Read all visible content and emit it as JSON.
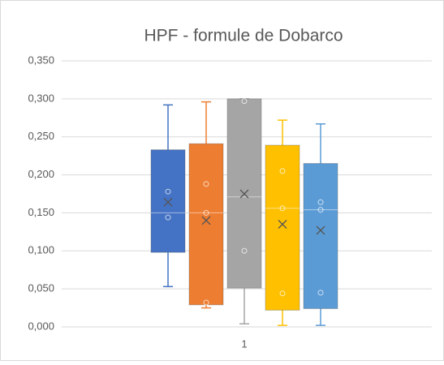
{
  "chart_data": {
    "type": "box",
    "title": "HPF - formule de Dobarco",
    "categories": [
      "1"
    ],
    "ylim": [
      0,
      0.35
    ],
    "yticks": [
      {
        "value": 0,
        "label": "0,000"
      },
      {
        "value": 0.05,
        "label": "0,050"
      },
      {
        "value": 0.1,
        "label": "0,100"
      },
      {
        "value": 0.15,
        "label": "0,150"
      },
      {
        "value": 0.2,
        "label": "0,200"
      },
      {
        "value": 0.25,
        "label": "0,250"
      },
      {
        "value": 0.3,
        "label": "0,300"
      },
      {
        "value": 0.35,
        "label": "0,350"
      }
    ],
    "grid": true,
    "series": [
      {
        "color": "#4472c4",
        "min": 0.053,
        "q1": 0.098,
        "median": 0.15,
        "q3": 0.233,
        "max": 0.292,
        "mean": 0.164,
        "points": [
          0.178,
          0.144
        ]
      },
      {
        "color": "#ed7d31",
        "min": 0.025,
        "q1": 0.029,
        "median": 0.15,
        "q3": 0.241,
        "max": 0.296,
        "mean": 0.14,
        "points": [
          0.188,
          0.15,
          0.032
        ]
      },
      {
        "color": "#a5a5a5",
        "min": 0.004,
        "q1": 0.051,
        "median": 0.171,
        "q3": 0.3,
        "max": 0.3,
        "mean": 0.175,
        "points": [
          0.297,
          0.1
        ]
      },
      {
        "color": "#ffc000",
        "min": 0.002,
        "q1": 0.022,
        "median": 0.156,
        "q3": 0.239,
        "max": 0.272,
        "mean": 0.135,
        "points": [
          0.205,
          0.156,
          0.044
        ]
      },
      {
        "color": "#5b9bd5",
        "min": 0.002,
        "q1": 0.024,
        "median": 0.154,
        "q3": 0.215,
        "max": 0.267,
        "mean": 0.127,
        "points": [
          0.164,
          0.154,
          0.045
        ]
      }
    ]
  }
}
